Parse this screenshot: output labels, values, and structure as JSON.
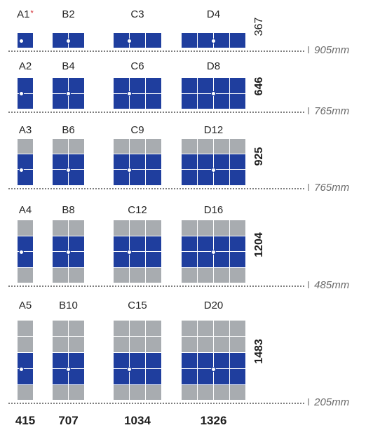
{
  "colors": {
    "active": "#1f3e9e",
    "inactive": "#a8acb0",
    "grid": "#ffffff",
    "baseline": "#7d7d7d"
  },
  "rows": [
    {
      "height_label": "367",
      "height_bold": false,
      "gap_value": "905",
      "unit": "mm",
      "items": [
        {
          "label": "A1",
          "marked": true,
          "mark": "*",
          "cols": 1,
          "filled_rows": [
            0
          ]
        },
        {
          "label": "B2",
          "marked": false,
          "cols": 2,
          "filled_rows": [
            0
          ]
        },
        {
          "label": "C3",
          "marked": false,
          "cols": 3,
          "filled_rows": [
            0
          ]
        },
        {
          "label": "D4",
          "marked": false,
          "cols": 4,
          "filled_rows": [
            0
          ]
        }
      ],
      "row_count": 1
    },
    {
      "height_label": "646",
      "height_bold": true,
      "gap_value": "765",
      "unit": "mm",
      "items": [
        {
          "label": "A2",
          "marked": false,
          "cols": 1,
          "filled_rows": [
            0,
            1
          ]
        },
        {
          "label": "B4",
          "marked": false,
          "cols": 2,
          "filled_rows": [
            0,
            1
          ]
        },
        {
          "label": "C6",
          "marked": false,
          "cols": 3,
          "filled_rows": [
            0,
            1
          ]
        },
        {
          "label": "D8",
          "marked": false,
          "cols": 4,
          "filled_rows": [
            0,
            1
          ]
        }
      ],
      "row_count": 2
    },
    {
      "height_label": "925",
      "height_bold": true,
      "gap_value": "765",
      "unit": "mm",
      "items": [
        {
          "label": "A3",
          "marked": false,
          "cols": 1,
          "filled_rows": [
            1,
            2
          ]
        },
        {
          "label": "B6",
          "marked": false,
          "cols": 2,
          "filled_rows": [
            1,
            2
          ]
        },
        {
          "label": "C9",
          "marked": false,
          "cols": 3,
          "filled_rows": [
            1,
            2
          ]
        },
        {
          "label": "D12",
          "marked": false,
          "cols": 4,
          "filled_rows": [
            1,
            2
          ]
        }
      ],
      "row_count": 3
    },
    {
      "height_label": "1204",
      "height_bold": true,
      "gap_value": "485",
      "unit": "mm",
      "items": [
        {
          "label": "A4",
          "marked": false,
          "cols": 1,
          "filled_rows": [
            1,
            2
          ]
        },
        {
          "label": "B8",
          "marked": false,
          "cols": 2,
          "filled_rows": [
            1,
            2
          ]
        },
        {
          "label": "C12",
          "marked": false,
          "cols": 3,
          "filled_rows": [
            1,
            2
          ]
        },
        {
          "label": "D16",
          "marked": false,
          "cols": 4,
          "filled_rows": [
            1,
            2
          ]
        }
      ],
      "row_count": 4
    },
    {
      "height_label": "1483",
      "height_bold": true,
      "gap_value": "205",
      "unit": "mm",
      "items": [
        {
          "label": "A5",
          "marked": false,
          "cols": 1,
          "filled_rows": [
            2,
            3
          ]
        },
        {
          "label": "B10",
          "marked": false,
          "cols": 2,
          "filled_rows": [
            2,
            3
          ]
        },
        {
          "label": "C15",
          "marked": false,
          "cols": 3,
          "filled_rows": [
            2,
            3
          ]
        },
        {
          "label": "D20",
          "marked": false,
          "cols": 4,
          "filled_rows": [
            2,
            3
          ]
        }
      ],
      "row_count": 5
    }
  ],
  "widths": [
    "415",
    "707",
    "1034",
    "1326"
  ]
}
